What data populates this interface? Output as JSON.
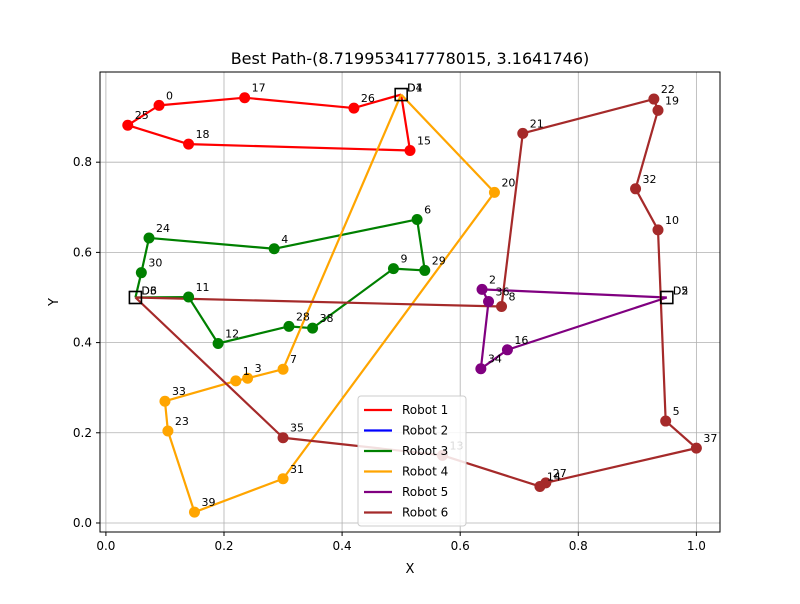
{
  "chart_data": {
    "type": "line",
    "title": "Best Path-(8.719953417778015, 3.1641746)",
    "xlabel": "X",
    "ylabel": "Y",
    "xlim": [
      -0.01,
      1.04
    ],
    "ylim": [
      -0.02,
      1.0
    ],
    "xticks": [
      0.0,
      0.2,
      0.4,
      0.6,
      0.8,
      1.0
    ],
    "xtick_labels": [
      "0.0",
      "0.2",
      "0.4",
      "0.6",
      "0.8",
      "1.0"
    ],
    "yticks": [
      0.0,
      0.2,
      0.4,
      0.6,
      0.8
    ],
    "ytick_labels": [
      "0.0",
      "0.2",
      "0.4",
      "0.6",
      "0.8"
    ],
    "grid": true,
    "legend_position": "lower-center",
    "depots": [
      {
        "x": 0.5,
        "y": 0.95,
        "label": "D1"
      },
      {
        "x": 0.5,
        "y": 0.95,
        "label": "D4"
      },
      {
        "x": 0.05,
        "y": 0.5,
        "label": "D3"
      },
      {
        "x": 0.05,
        "y": 0.5,
        "label": "D6"
      },
      {
        "x": 0.95,
        "y": 0.5,
        "label": "D2"
      },
      {
        "x": 0.95,
        "y": 0.5,
        "label": "D5"
      }
    ],
    "series": [
      {
        "name": "Robot 1",
        "color": "#ff0000",
        "points": [
          {
            "x": 0.5,
            "y": 0.95,
            "label": ""
          },
          {
            "x": 0.42,
            "y": 0.92,
            "label": "26"
          },
          {
            "x": 0.235,
            "y": 0.943,
            "label": "17"
          },
          {
            "x": 0.09,
            "y": 0.926,
            "label": "0"
          },
          {
            "x": 0.037,
            "y": 0.882,
            "label": "25"
          },
          {
            "x": 0.14,
            "y": 0.84,
            "label": "18"
          },
          {
            "x": 0.515,
            "y": 0.826,
            "label": "15"
          },
          {
            "x": 0.5,
            "y": 0.95,
            "label": ""
          }
        ]
      },
      {
        "name": "Robot 2",
        "color": "#0000ff",
        "points": [
          {
            "x": 0.95,
            "y": 0.5,
            "label": ""
          },
          {
            "x": 0.95,
            "y": 0.5,
            "label": ""
          }
        ]
      },
      {
        "name": "Robot 3",
        "color": "#008000",
        "points": [
          {
            "x": 0.05,
            "y": 0.5,
            "label": ""
          },
          {
            "x": 0.06,
            "y": 0.555,
            "label": "30"
          },
          {
            "x": 0.073,
            "y": 0.632,
            "label": "24"
          },
          {
            "x": 0.285,
            "y": 0.608,
            "label": "4"
          },
          {
            "x": 0.527,
            "y": 0.673,
            "label": "6"
          },
          {
            "x": 0.54,
            "y": 0.56,
            "label": "29"
          },
          {
            "x": 0.487,
            "y": 0.564,
            "label": "9"
          },
          {
            "x": 0.35,
            "y": 0.432,
            "label": "38"
          },
          {
            "x": 0.31,
            "y": 0.436,
            "label": "28"
          },
          {
            "x": 0.19,
            "y": 0.398,
            "label": "12"
          },
          {
            "x": 0.14,
            "y": 0.501,
            "label": "11"
          },
          {
            "x": 0.05,
            "y": 0.5,
            "label": ""
          }
        ]
      },
      {
        "name": "Robot 4",
        "color": "#ffa500",
        "points": [
          {
            "x": 0.5,
            "y": 0.95,
            "label": ""
          },
          {
            "x": 0.3,
            "y": 0.341,
            "label": "7"
          },
          {
            "x": 0.24,
            "y": 0.321,
            "label": "3"
          },
          {
            "x": 0.22,
            "y": 0.315,
            "label": "1"
          },
          {
            "x": 0.1,
            "y": 0.27,
            "label": "33"
          },
          {
            "x": 0.105,
            "y": 0.204,
            "label": "23"
          },
          {
            "x": 0.15,
            "y": 0.024,
            "label": "39"
          },
          {
            "x": 0.3,
            "y": 0.098,
            "label": "31"
          },
          {
            "x": 0.658,
            "y": 0.733,
            "label": "20"
          },
          {
            "x": 0.5,
            "y": 0.95,
            "label": ""
          }
        ]
      },
      {
        "name": "Robot 5",
        "color": "#800080",
        "points": [
          {
            "x": 0.95,
            "y": 0.5,
            "label": ""
          },
          {
            "x": 0.637,
            "y": 0.518,
            "label": "2"
          },
          {
            "x": 0.648,
            "y": 0.491,
            "label": "36"
          },
          {
            "x": 0.635,
            "y": 0.342,
            "label": "34"
          },
          {
            "x": 0.68,
            "y": 0.384,
            "label": "16"
          },
          {
            "x": 0.95,
            "y": 0.5,
            "label": ""
          }
        ]
      },
      {
        "name": "Robot 6",
        "color": "#a52a2a",
        "points": [
          {
            "x": 0.05,
            "y": 0.5,
            "label": ""
          },
          {
            "x": 0.67,
            "y": 0.48,
            "label": "8"
          },
          {
            "x": 0.706,
            "y": 0.864,
            "label": "21"
          },
          {
            "x": 0.928,
            "y": 0.94,
            "label": "22"
          },
          {
            "x": 0.935,
            "y": 0.915,
            "label": "19"
          },
          {
            "x": 0.897,
            "y": 0.741,
            "label": "32"
          },
          {
            "x": 0.935,
            "y": 0.65,
            "label": "10"
          },
          {
            "x": 0.948,
            "y": 0.226,
            "label": "5"
          },
          {
            "x": 1.0,
            "y": 0.166,
            "label": "37"
          },
          {
            "x": 0.745,
            "y": 0.089,
            "label": "27"
          },
          {
            "x": 0.735,
            "y": 0.081,
            "label": "14"
          },
          {
            "x": 0.57,
            "y": 0.15,
            "label": "13"
          },
          {
            "x": 0.3,
            "y": 0.189,
            "label": "35"
          },
          {
            "x": 0.05,
            "y": 0.5,
            "label": ""
          }
        ]
      }
    ]
  }
}
